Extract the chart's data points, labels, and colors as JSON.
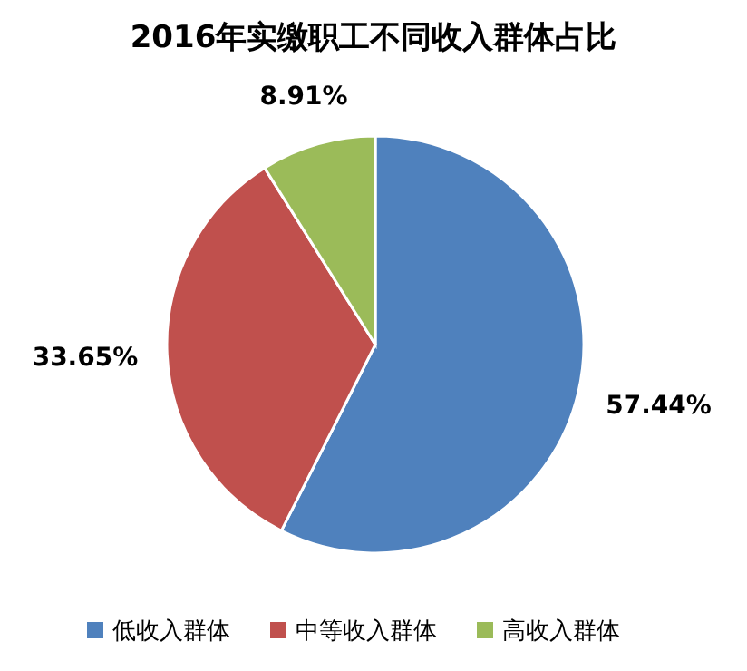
{
  "chart_data": {
    "type": "pie",
    "title": "2016年实缴职工不同收入群体占比",
    "categories": [
      "低收入群体",
      "中等收入群体",
      "高收入群体"
    ],
    "values": [
      57.44,
      33.65,
      8.91
    ],
    "colors": [
      "#4f81bd",
      "#c0504d",
      "#9bbb59"
    ],
    "value_labels": [
      "57.44%",
      "33.65%",
      "8.91%"
    ],
    "legend": "bottom"
  }
}
